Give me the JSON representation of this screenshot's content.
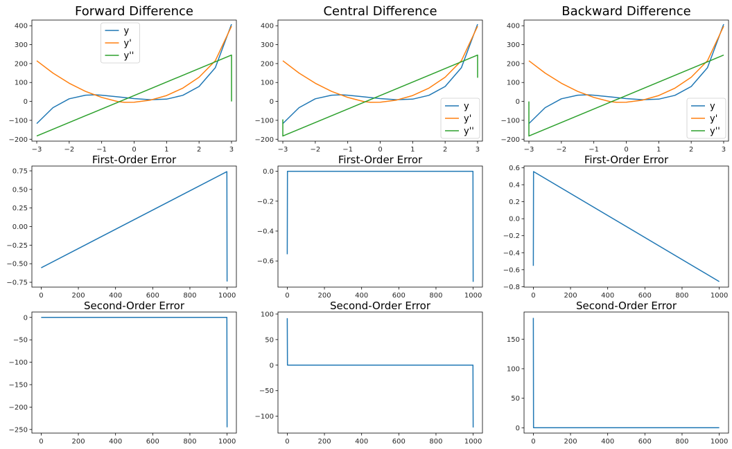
{
  "colors": {
    "y": "#1f77b4",
    "dy": "#ff7f0e",
    "ddy": "#2ca02c",
    "error": "#1f77b4"
  },
  "chart_data": [
    {
      "type": "line",
      "title": "Forward Difference",
      "xticks": [
        "−3",
        "−2",
        "−1",
        "0",
        "1",
        "2",
        "3"
      ],
      "yticks": [
        "−200",
        "−100",
        "0",
        "100",
        "200",
        "300",
        "400"
      ],
      "xlim": [
        -3.15,
        3.15
      ],
      "ylim": [
        -210,
        430
      ],
      "legend": {
        "placement": "upper-center",
        "entries": [
          "y",
          "y'",
          "y''"
        ]
      },
      "series": [
        {
          "name": "y",
          "color_key": "y",
          "points": [
            [
              -3,
              -117
            ],
            [
              -2.5,
              -33
            ],
            [
              -2,
              14
            ],
            [
              -1.5,
              33
            ],
            [
              -1.2,
              35
            ],
            [
              -1,
              33
            ],
            [
              -0.5,
              24
            ],
            [
              0,
              15
            ],
            [
              0.5,
              9
            ],
            [
              1,
              12
            ],
            [
              1.5,
              32
            ],
            [
              2,
              79
            ],
            [
              2.5,
              178
            ],
            [
              3,
              408
            ]
          ]
        },
        {
          "name": "y'",
          "color_key": "dy",
          "points": [
            [
              -3,
              215
            ],
            [
              -2.5,
              150
            ],
            [
              -2,
              96
            ],
            [
              -1.5,
              53
            ],
            [
              -1,
              21
            ],
            [
              -0.5,
              -1
            ],
            [
              -0.3,
              -5
            ],
            [
              0,
              -4
            ],
            [
              0.5,
              7
            ],
            [
              1,
              31
            ],
            [
              1.5,
              70
            ],
            [
              2,
              128
            ],
            [
              2.5,
              215
            ],
            [
              3,
              398
            ]
          ]
        },
        {
          "name": "y''",
          "color_key": "ddy",
          "points": [
            [
              -3,
              -183
            ],
            [
              3,
              245
            ],
            [
              3,
              0
            ]
          ]
        }
      ]
    },
    {
      "type": "line",
      "title": "Central Difference",
      "xticks": [
        "−3",
        "−2",
        "−1",
        "0",
        "1",
        "2",
        "3"
      ],
      "yticks": [
        "−200",
        "−100",
        "0",
        "100",
        "200",
        "300",
        "400"
      ],
      "xlim": [
        -3.15,
        3.15
      ],
      "ylim": [
        -210,
        430
      ],
      "legend": {
        "placement": "lower-right",
        "entries": [
          "y",
          "y'",
          "y''"
        ]
      },
      "series": [
        {
          "name": "y",
          "color_key": "y",
          "points": [
            [
              -3,
              -117
            ],
            [
              -2.5,
              -33
            ],
            [
              -2,
              14
            ],
            [
              -1.5,
              33
            ],
            [
              -1.2,
              35
            ],
            [
              -1,
              33
            ],
            [
              -0.5,
              24
            ],
            [
              0,
              15
            ],
            [
              0.5,
              9
            ],
            [
              1,
              12
            ],
            [
              1.5,
              32
            ],
            [
              2,
              79
            ],
            [
              2.5,
              178
            ],
            [
              3,
              408
            ]
          ]
        },
        {
          "name": "y'",
          "color_key": "dy",
          "points": [
            [
              -3,
              215
            ],
            [
              -2.5,
              150
            ],
            [
              -2,
              96
            ],
            [
              -1.5,
              53
            ],
            [
              -1,
              21
            ],
            [
              -0.5,
              -1
            ],
            [
              -0.3,
              -5
            ],
            [
              0,
              -4
            ],
            [
              0.5,
              7
            ],
            [
              1,
              31
            ],
            [
              1.5,
              70
            ],
            [
              2,
              128
            ],
            [
              2.5,
              215
            ],
            [
              3,
              398
            ]
          ]
        },
        {
          "name": "y''",
          "color_key": "ddy",
          "points": [
            [
              -3,
              -95
            ],
            [
              -3,
              -183
            ],
            [
              3,
              245
            ],
            [
              3,
              125
            ]
          ]
        }
      ]
    },
    {
      "type": "line",
      "title": "Backward Difference",
      "xticks": [
        "−3",
        "−2",
        "−1",
        "0",
        "1",
        "2",
        "3"
      ],
      "yticks": [
        "−200",
        "−100",
        "0",
        "100",
        "200",
        "300",
        "400"
      ],
      "xlim": [
        -3.15,
        3.15
      ],
      "ylim": [
        -210,
        430
      ],
      "legend": {
        "placement": "lower-right",
        "entries": [
          "y",
          "y'",
          "y''"
        ]
      },
      "series": [
        {
          "name": "y",
          "color_key": "y",
          "points": [
            [
              -3,
              -117
            ],
            [
              -2.5,
              -33
            ],
            [
              -2,
              14
            ],
            [
              -1.5,
              33
            ],
            [
              -1.2,
              35
            ],
            [
              -1,
              33
            ],
            [
              -0.5,
              24
            ],
            [
              0,
              15
            ],
            [
              0.5,
              9
            ],
            [
              1,
              12
            ],
            [
              1.5,
              32
            ],
            [
              2,
              79
            ],
            [
              2.5,
              178
            ],
            [
              3,
              408
            ]
          ]
        },
        {
          "name": "y'",
          "color_key": "dy",
          "points": [
            [
              -3,
              215
            ],
            [
              -2.5,
              150
            ],
            [
              -2,
              96
            ],
            [
              -1.5,
              53
            ],
            [
              -1,
              21
            ],
            [
              -0.5,
              -1
            ],
            [
              -0.3,
              -5
            ],
            [
              0,
              -4
            ],
            [
              0.5,
              7
            ],
            [
              1,
              31
            ],
            [
              1.5,
              70
            ],
            [
              2,
              128
            ],
            [
              2.5,
              215
            ],
            [
              3,
              398
            ]
          ]
        },
        {
          "name": "y''",
          "color_key": "ddy",
          "points": [
            [
              -3,
              0
            ],
            [
              -3,
              -183
            ],
            [
              3,
              245
            ]
          ]
        }
      ]
    },
    {
      "type": "line",
      "title": "First-Order Error",
      "xticks": [
        "0",
        "200",
        "400",
        "600",
        "800",
        "1000"
      ],
      "yticks": [
        "−0.75",
        "−0.50",
        "−0.25",
        "0.00",
        "0.25",
        "0.50",
        "0.75"
      ],
      "xlim": [
        -50,
        1050
      ],
      "ylim": [
        -0.815,
        0.815
      ],
      "series": [
        {
          "name": "",
          "color_key": "error",
          "points": [
            [
              0,
              -0.555
            ],
            [
              999,
              0.74
            ],
            [
              1000,
              -0.74
            ]
          ]
        }
      ]
    },
    {
      "type": "line",
      "title": "First-Order Error",
      "xticks": [
        "0",
        "200",
        "400",
        "600",
        "800",
        "1000"
      ],
      "yticks": [
        "−0.6",
        "−0.4",
        "−0.2",
        "0.0"
      ],
      "xlim": [
        -50,
        1050
      ],
      "ylim": [
        -0.775,
        0.035
      ],
      "series": [
        {
          "name": "",
          "color_key": "error",
          "points": [
            [
              0,
              -0.555
            ],
            [
              1,
              0
            ],
            [
              999,
              0
            ],
            [
              1000,
              -0.74
            ]
          ]
        }
      ]
    },
    {
      "type": "line",
      "title": "First-Order Error",
      "xticks": [
        "0",
        "200",
        "400",
        "600",
        "800",
        "1000"
      ],
      "yticks": [
        "−0.8",
        "−0.6",
        "−0.4",
        "−0.2",
        "0.0",
        "0.2",
        "0.4",
        "0.6"
      ],
      "xlim": [
        -50,
        1050
      ],
      "ylim": [
        -0.805,
        0.62
      ],
      "series": [
        {
          "name": "",
          "color_key": "error",
          "points": [
            [
              0,
              -0.555
            ],
            [
              1,
              0.555
            ],
            [
              1000,
              -0.74
            ]
          ]
        }
      ]
    },
    {
      "type": "line",
      "title": "Second-Order Error",
      "xticks": [
        "0",
        "200",
        "400",
        "600",
        "800",
        "1000"
      ],
      "yticks": [
        "−250",
        "−200",
        "−150",
        "−100",
        "−50",
        "0"
      ],
      "xlim": [
        -50,
        1050
      ],
      "ylim": [
        -258,
        12
      ],
      "series": [
        {
          "name": "",
          "color_key": "error",
          "points": [
            [
              0,
              0
            ],
            [
              999,
              0
            ],
            [
              1000,
              -245
            ]
          ]
        }
      ]
    },
    {
      "type": "line",
      "title": "Second-Order Error",
      "xticks": [
        "0",
        "200",
        "400",
        "600",
        "800",
        "1000"
      ],
      "yticks": [
        "−100",
        "−50",
        "0",
        "50",
        "100"
      ],
      "xlim": [
        -50,
        1050
      ],
      "ylim": [
        -133,
        104
      ],
      "series": [
        {
          "name": "",
          "color_key": "error",
          "points": [
            [
              0,
              92
            ],
            [
              1,
              0
            ],
            [
              999,
              0
            ],
            [
              1000,
              -122
            ]
          ]
        }
      ]
    },
    {
      "type": "line",
      "title": "Second-Order Error",
      "xticks": [
        "0",
        "200",
        "400",
        "600",
        "800",
        "1000"
      ],
      "yticks": [
        "0",
        "50",
        "100",
        "150"
      ],
      "xlim": [
        -50,
        1050
      ],
      "ylim": [
        -9,
        196
      ],
      "series": [
        {
          "name": "",
          "color_key": "error",
          "points": [
            [
              0,
              186
            ],
            [
              1,
              0
            ],
            [
              1000,
              0
            ]
          ]
        }
      ]
    }
  ]
}
